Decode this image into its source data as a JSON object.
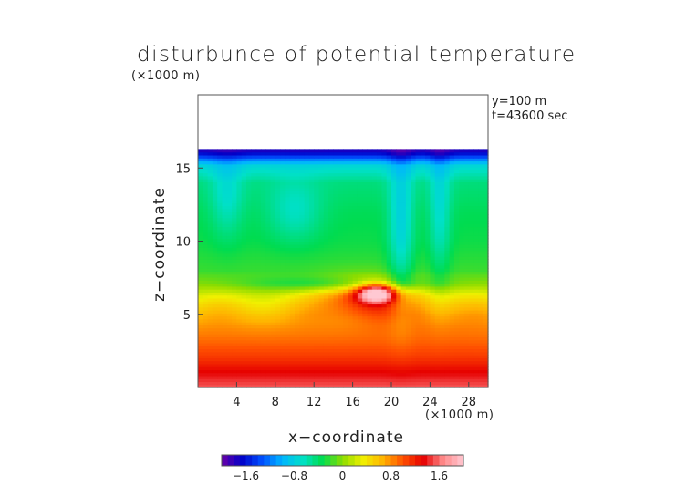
{
  "chart_data": {
    "type": "heatmap",
    "title": "disturbunce of potential temperature",
    "xlabel": "x−coordinate",
    "ylabel": "z−coordinate",
    "x_unit": "(×1000 m)",
    "z_unit": "(×1000 m)",
    "annotations": [
      "y=100 m",
      "t=43600 sec"
    ],
    "xlim": [
      0,
      30
    ],
    "zlim": [
      0,
      20
    ],
    "x_ticks": [
      4,
      8,
      12,
      16,
      20,
      24,
      28
    ],
    "x_tick_labels": [
      "4",
      "8",
      "12",
      "16",
      "20",
      "24",
      "28"
    ],
    "z_ticks": [
      5,
      10,
      15
    ],
    "z_tick_labels": [
      "5",
      "10",
      "15"
    ],
    "data_top_z": 16.3,
    "colorbar": {
      "min": -2.0,
      "max": 2.0,
      "ticks": [
        -1.6,
        -0.8,
        0,
        0.8,
        1.6
      ],
      "tick_labels": [
        "−1.6",
        "−0.8",
        "0",
        "0.8",
        "1.6"
      ],
      "colors": [
        "#6a00a8",
        "#0000c8",
        "#0050ff",
        "#00b4ff",
        "#00e0c8",
        "#00dc50",
        "#8cdc00",
        "#f0f000",
        "#ffb400",
        "#ff5000",
        "#e60000",
        "#ff8c8c",
        "#ffc8d2"
      ]
    },
    "vertical_profile": [
      {
        "z": 0.0,
        "value": 1.55
      },
      {
        "z": 1.0,
        "value": 1.35
      },
      {
        "z": 2.0,
        "value": 1.12
      },
      {
        "z": 3.0,
        "value": 0.95
      },
      {
        "z": 4.0,
        "value": 0.8
      },
      {
        "z": 5.0,
        "value": 0.62
      },
      {
        "z": 6.0,
        "value": 0.35
      },
      {
        "z": 7.0,
        "value": 0.05
      },
      {
        "z": 8.0,
        "value": -0.2
      },
      {
        "z": 10.0,
        "value": -0.3
      },
      {
        "z": 12.0,
        "value": -0.35
      },
      {
        "z": 14.0,
        "value": -0.45
      },
      {
        "z": 15.2,
        "value": -0.75
      },
      {
        "z": 16.0,
        "value": -1.6
      },
      {
        "z": 16.3,
        "value": -1.8
      }
    ],
    "features": [
      {
        "kind": "warm-anomaly",
        "x": 18.5,
        "z": 6.5,
        "value": 1.5,
        "sx": 1.4,
        "sz": 0.45
      },
      {
        "kind": "warm-anomaly",
        "x": 17.0,
        "z": 6.2,
        "value": 0.7,
        "sx": 3.2,
        "sz": 0.9
      },
      {
        "kind": "cool-band",
        "x": 15.0,
        "z": 7.1,
        "value": -0.4,
        "sx": 7.0,
        "sz": 0.35
      },
      {
        "kind": "cool-plume",
        "x": 21.0,
        "z": 11.0,
        "value": -0.45,
        "sx": 0.9,
        "sz": 4.0
      },
      {
        "kind": "cool-plume",
        "x": 25.0,
        "z": 12.0,
        "value": -0.35,
        "sx": 0.8,
        "sz": 3.5
      },
      {
        "kind": "cool-plume",
        "x": 3.0,
        "z": 13.0,
        "value": -0.3,
        "sx": 1.2,
        "sz": 2.0
      },
      {
        "kind": "cool-blob",
        "x": 10.0,
        "z": 12.0,
        "value": -0.3,
        "sx": 2.0,
        "sz": 1.5
      },
      {
        "kind": "warm-blob",
        "x": 22.0,
        "z": 5.5,
        "value": 0.2,
        "sx": 5.0,
        "sz": 1.2
      }
    ]
  }
}
